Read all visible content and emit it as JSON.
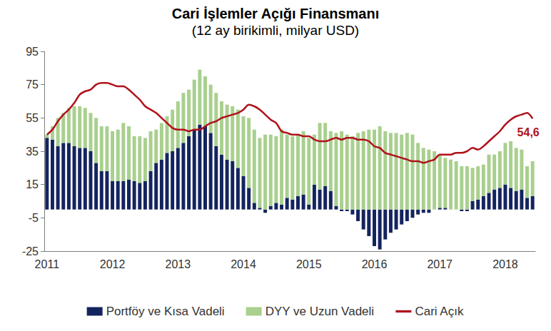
{
  "chart_data": {
    "type": "bar",
    "title": "Cari İşlemler Açığı Finansmanı",
    "subtitle": "(12 ay birikimli, milyar USD)",
    "stacked": true,
    "grid": false,
    "legend": "bottom",
    "categories": [
      "2011",
      null,
      null,
      null,
      null,
      null,
      null,
      null,
      null,
      null,
      null,
      null,
      "2012",
      null,
      null,
      null,
      null,
      null,
      null,
      null,
      null,
      null,
      null,
      null,
      "2013",
      null,
      null,
      null,
      null,
      null,
      null,
      null,
      null,
      null,
      null,
      null,
      "2014",
      null,
      null,
      null,
      null,
      null,
      null,
      null,
      null,
      null,
      null,
      null,
      "2015",
      null,
      null,
      null,
      null,
      null,
      null,
      null,
      null,
      null,
      null,
      null,
      "2016",
      null,
      null,
      null,
      null,
      null,
      null,
      null,
      null,
      null,
      null,
      null,
      "2017",
      null,
      null,
      null,
      null,
      null,
      null,
      null,
      null,
      null,
      null,
      null,
      "2018",
      null,
      null,
      null,
      null,
      null
    ],
    "ylim": [
      -25,
      95
    ],
    "yticks": [
      -25,
      -5,
      15,
      35,
      55,
      75,
      95
    ],
    "series": [
      {
        "name": "Portföy ve Kısa Vadeli",
        "type": "bar",
        "color": "#14245e",
        "values": [
          43,
          42,
          38,
          40,
          40,
          38,
          37,
          37,
          35,
          28,
          23,
          23,
          17,
          17,
          17,
          18,
          17,
          16,
          17,
          23,
          28,
          30,
          34,
          35,
          37,
          40,
          44,
          48,
          51,
          50,
          46,
          38,
          33,
          30,
          29,
          25,
          20,
          13,
          4,
          1,
          -2,
          2,
          4,
          3,
          7,
          6,
          8,
          9,
          3,
          15,
          12,
          14,
          11,
          2,
          -1,
          -1,
          -3,
          -7,
          -12,
          -16,
          -22,
          -24,
          -18,
          -14,
          -12,
          -9,
          -7,
          -5,
          -3,
          -2,
          -2,
          0,
          1,
          1,
          0,
          0,
          -1,
          -1,
          5,
          6,
          8,
          10,
          12,
          13,
          15,
          13,
          11,
          12,
          7,
          8
        ]
      },
      {
        "name": "DYY ve Uzun Vadeli",
        "type": "bar",
        "color": "#a9d08e",
        "values": [
          2,
          8,
          17,
          18,
          21,
          24,
          25,
          24,
          23,
          27,
          27,
          27,
          30,
          31,
          35,
          32,
          27,
          28,
          26,
          24,
          20,
          22,
          22,
          25,
          28,
          30,
          28,
          30,
          33,
          30,
          29,
          32,
          32,
          33,
          33,
          35,
          36,
          42,
          44,
          42,
          45,
          43,
          40,
          45,
          38,
          38,
          37,
          38,
          40,
          30,
          40,
          38,
          36,
          44,
          47,
          45,
          44,
          46,
          47,
          48,
          48,
          50,
          47,
          46,
          46,
          45,
          46,
          45,
          40,
          37,
          36,
          35,
          32,
          30,
          30,
          29,
          26,
          26,
          20,
          20,
          19,
          23,
          21,
          22,
          25,
          28,
          26,
          24,
          19,
          21
        ]
      },
      {
        "name": "Cari Açık",
        "type": "line",
        "color": "#b0121b",
        "values": [
          45,
          48,
          53,
          57,
          60,
          64,
          69,
          71,
          72,
          75,
          76,
          76,
          75,
          74,
          74,
          72,
          69,
          66,
          62,
          60,
          58,
          55,
          52,
          49,
          48,
          48,
          47,
          48,
          48,
          50,
          52,
          53,
          55,
          56,
          57,
          58,
          60,
          63,
          62,
          60,
          57,
          54,
          52,
          47,
          46,
          45,
          45,
          44,
          44,
          42,
          41,
          41,
          42,
          43,
          42,
          43,
          43,
          42,
          42,
          41,
          38,
          37,
          34,
          33,
          32,
          31,
          30,
          29,
          29,
          28,
          29,
          30,
          33,
          33,
          33,
          34,
          34,
          35,
          37,
          36,
          38,
          41,
          44,
          47,
          51,
          54,
          56,
          57,
          58,
          54.6
        ],
        "value_labels": [
          null,
          null,
          null,
          null,
          null,
          null,
          null,
          null,
          null,
          null,
          null,
          null,
          null,
          null,
          null,
          null,
          null,
          null,
          null,
          null,
          null,
          null,
          null,
          null,
          null,
          null,
          null,
          null,
          null,
          null,
          null,
          null,
          null,
          null,
          null,
          null,
          null,
          null,
          null,
          null,
          null,
          null,
          null,
          null,
          null,
          null,
          null,
          null,
          null,
          null,
          null,
          null,
          null,
          null,
          null,
          null,
          null,
          null,
          null,
          null,
          null,
          null,
          null,
          null,
          null,
          null,
          null,
          null,
          null,
          null,
          null,
          null,
          null,
          null,
          null,
          null,
          null,
          null,
          null,
          null,
          null,
          null,
          null,
          null,
          null,
          null,
          null,
          null,
          null,
          "54,6"
        ]
      }
    ]
  }
}
